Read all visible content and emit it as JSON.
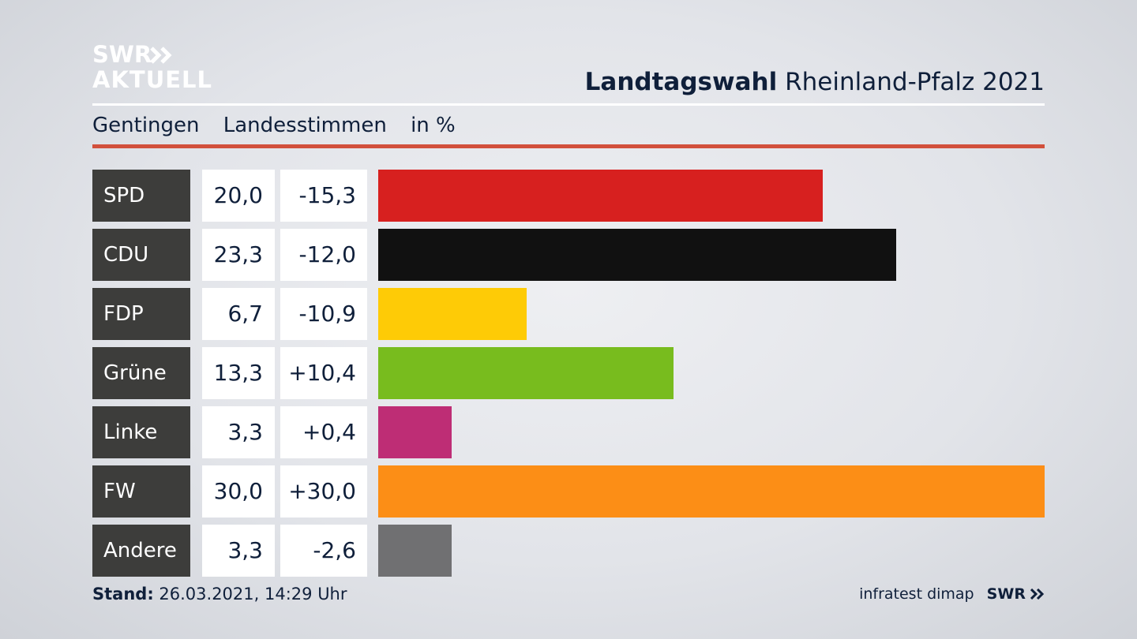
{
  "logo": {
    "line1": "SWR",
    "line2": "AKTUELL"
  },
  "header": {
    "title_bold": "Landtagswahl",
    "title_rest": "Rheinland-Pfalz 2021"
  },
  "subtitle": {
    "place": "Gentingen",
    "metric": "Landesstimmen",
    "unit": "in %"
  },
  "chart_data": {
    "type": "bar",
    "orientation": "horizontal",
    "categories": [
      "SPD",
      "CDU",
      "FDP",
      "Grüne",
      "Linke",
      "FW",
      "Andere"
    ],
    "values": [
      20.0,
      23.3,
      6.7,
      13.3,
      3.3,
      30.0,
      3.3
    ],
    "value_labels": [
      "20,0",
      "23,3",
      "6,7",
      "13,3",
      "3,3",
      "30,0",
      "3,3"
    ],
    "diff_labels": [
      "-15,3",
      "-12,0",
      "-10,9",
      "+10,4",
      "+0,4",
      "+30,0",
      "-2,6"
    ],
    "colors": [
      "#d7201f",
      "#111111",
      "#fecb06",
      "#78bc1e",
      "#be2d75",
      "#fc8e16",
      "#707072"
    ],
    "xlim": [
      0,
      30.0
    ]
  },
  "footer": {
    "stand_label": "Stand:",
    "stand_value": "26.03.2021, 14:29 Uhr",
    "source": "infratest dimap",
    "brand": "SWR"
  }
}
